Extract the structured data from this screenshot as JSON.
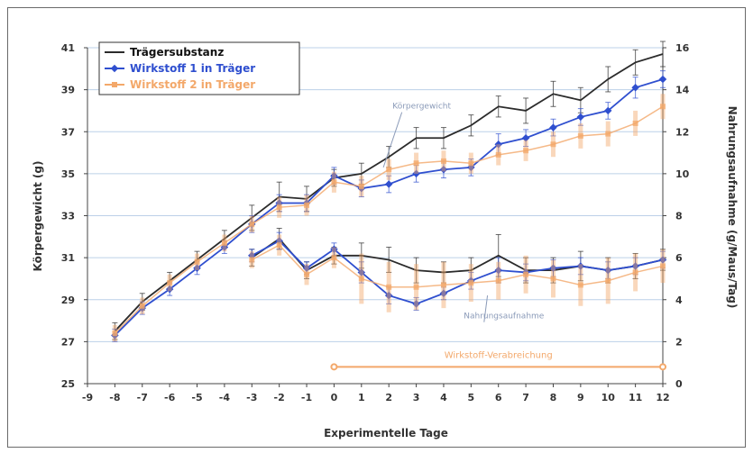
{
  "chart_data": {
    "type": "line",
    "xlabel": "Experimentelle Tage",
    "ylabel_left": "Körpergewicht (g)",
    "ylabel_right": "Nahrungsaufnahme (g/Maus/Tag)",
    "xlim": [
      -9,
      12
    ],
    "ylim_left": [
      25,
      41
    ],
    "ylim_right": [
      0,
      16
    ],
    "x_ticks": [
      -9,
      -8,
      -7,
      -6,
      -5,
      -4,
      -3,
      -2,
      -1,
      0,
      1,
      2,
      3,
      4,
      5,
      6,
      7,
      8,
      9,
      10,
      11,
      12
    ],
    "y_ticks_left": [
      25,
      27,
      29,
      31,
      33,
      35,
      37,
      39,
      41
    ],
    "y_ticks_right": [
      0,
      2,
      4,
      6,
      8,
      10,
      12,
      14,
      16
    ],
    "grid": true,
    "legend_position": "top-left",
    "series": [
      {
        "name": "Trägersubstanz",
        "group": "Körpergewicht",
        "axis": "left",
        "color": "#2b2b2b",
        "marker": "none",
        "x": [
          -8,
          -7,
          -6,
          -5,
          -4,
          -3,
          -2,
          -1,
          0,
          1,
          2,
          3,
          4,
          5,
          6,
          7,
          8,
          9,
          10,
          11,
          12
        ],
        "y": [
          27.5,
          28.9,
          29.9,
          30.9,
          31.9,
          32.9,
          33.9,
          33.8,
          34.8,
          35.0,
          35.8,
          36.7,
          36.7,
          37.3,
          38.2,
          38.0,
          38.8,
          38.5,
          39.5,
          40.3,
          40.7
        ],
        "err": [
          0.4,
          0.4,
          0.4,
          0.4,
          0.4,
          0.6,
          0.7,
          0.6,
          0.4,
          0.5,
          0.5,
          0.5,
          0.5,
          0.5,
          0.5,
          0.6,
          0.6,
          0.6,
          0.6,
          0.6,
          0.6
        ]
      },
      {
        "name": "Wirkstoff 1 in Träger",
        "group": "Körpergewicht",
        "axis": "left",
        "color": "#2f4fcf",
        "marker": "diamond",
        "x": [
          -8,
          -7,
          -6,
          -5,
          -4,
          -3,
          -2,
          -1,
          0,
          1,
          2,
          3,
          4,
          5,
          6,
          7,
          8,
          9,
          10,
          11,
          12
        ],
        "y": [
          27.3,
          28.6,
          29.5,
          30.5,
          31.5,
          32.6,
          33.6,
          33.6,
          34.9,
          34.3,
          34.5,
          35.0,
          35.2,
          35.3,
          36.4,
          36.7,
          37.2,
          37.7,
          38.0,
          39.1,
          39.5
        ],
        "err": [
          0.3,
          0.3,
          0.3,
          0.3,
          0.3,
          0.4,
          0.4,
          0.4,
          0.4,
          0.4,
          0.4,
          0.4,
          0.4,
          0.4,
          0.5,
          0.4,
          0.4,
          0.4,
          0.4,
          0.5,
          0.4
        ]
      },
      {
        "name": "Wirkstoff 2 in Träger",
        "group": "Körpergewicht",
        "axis": "left",
        "color": "#f3a86a",
        "marker": "square",
        "x": [
          -8,
          -7,
          -6,
          -5,
          -4,
          -3,
          -2,
          -1,
          0,
          1,
          2,
          3,
          4,
          5,
          6,
          7,
          8,
          9,
          10,
          11,
          12
        ],
        "y": [
          27.4,
          28.7,
          29.8,
          30.8,
          31.7,
          32.6,
          33.4,
          33.5,
          34.6,
          34.4,
          35.2,
          35.5,
          35.6,
          35.5,
          35.9,
          36.1,
          36.4,
          36.8,
          36.9,
          37.4,
          38.2
        ],
        "err": [
          0.4,
          0.4,
          0.4,
          0.4,
          0.4,
          0.4,
          0.5,
          0.5,
          0.5,
          0.5,
          0.5,
          0.5,
          0.5,
          0.5,
          0.5,
          0.5,
          0.6,
          0.6,
          0.6,
          0.6,
          0.6
        ]
      },
      {
        "name": "Trägersubstanz",
        "group": "Nahrungsaufnahme",
        "axis": "right",
        "color": "#2b2b2b",
        "marker": "none",
        "x": [
          -3,
          -2,
          -1,
          0,
          1,
          2,
          3,
          4,
          5,
          6,
          7,
          8,
          9,
          10,
          11,
          12
        ],
        "y": [
          6.0,
          6.9,
          5.4,
          6.1,
          6.1,
          5.9,
          5.4,
          5.3,
          5.4,
          6.1,
          5.4,
          5.4,
          5.6,
          5.4,
          5.6,
          5.9
        ],
        "err": [
          0.4,
          0.5,
          0.4,
          0.4,
          0.6,
          0.6,
          0.6,
          0.5,
          0.6,
          1.0,
          0.6,
          0.6,
          0.7,
          0.6,
          0.6,
          0.5
        ]
      },
      {
        "name": "Wirkstoff 1 in Träger",
        "group": "Nahrungsaufnahme",
        "axis": "right",
        "color": "#2f4fcf",
        "marker": "diamond",
        "x": [
          -3,
          -2,
          -1,
          0,
          1,
          2,
          3,
          4,
          5,
          6,
          7,
          8,
          9,
          10,
          11,
          12
        ],
        "y": [
          6.1,
          6.8,
          5.5,
          6.4,
          5.3,
          4.2,
          3.8,
          4.3,
          4.9,
          5.4,
          5.3,
          5.5,
          5.6,
          5.4,
          5.6,
          5.9
        ],
        "err": [
          0.3,
          0.4,
          0.3,
          0.3,
          0.5,
          0.4,
          0.3,
          0.3,
          0.4,
          0.6,
          0.4,
          0.4,
          0.4,
          0.4,
          0.4,
          0.4
        ]
      },
      {
        "name": "Wirkstoff 2 in Träger",
        "group": "Nahrungsaufnahme",
        "axis": "right",
        "color": "#f3a86a",
        "marker": "square",
        "x": [
          -3,
          -2,
          -1,
          0,
          1,
          2,
          3,
          4,
          5,
          6,
          7,
          8,
          9,
          10,
          11,
          12
        ],
        "y": [
          5.9,
          6.6,
          5.2,
          6.0,
          5.0,
          4.6,
          4.6,
          4.7,
          4.8,
          4.9,
          5.2,
          5.0,
          4.7,
          4.9,
          5.3,
          5.6
        ],
        "err": [
          0.4,
          0.5,
          0.5,
          0.5,
          1.2,
          1.2,
          1.1,
          1.1,
          0.9,
          0.9,
          0.9,
          0.9,
          1.0,
          1.1,
          0.9,
          0.8
        ]
      }
    ],
    "annotations": [
      {
        "text": "Körpergewicht",
        "x": 3.2,
        "y_right": 13.1,
        "arrow_to_x": 1.8,
        "arrow_to_y_right": 10.3
      },
      {
        "text": "Nahrungsaufnahme",
        "x": 6.2,
        "y_right": 3.1,
        "arrow_to_x": 5.6,
        "arrow_to_y_right": 4.2
      }
    ],
    "bracket": {
      "text": "Wirkstoff-Verabreichung",
      "x_from": 0,
      "x_to": 12
    }
  }
}
